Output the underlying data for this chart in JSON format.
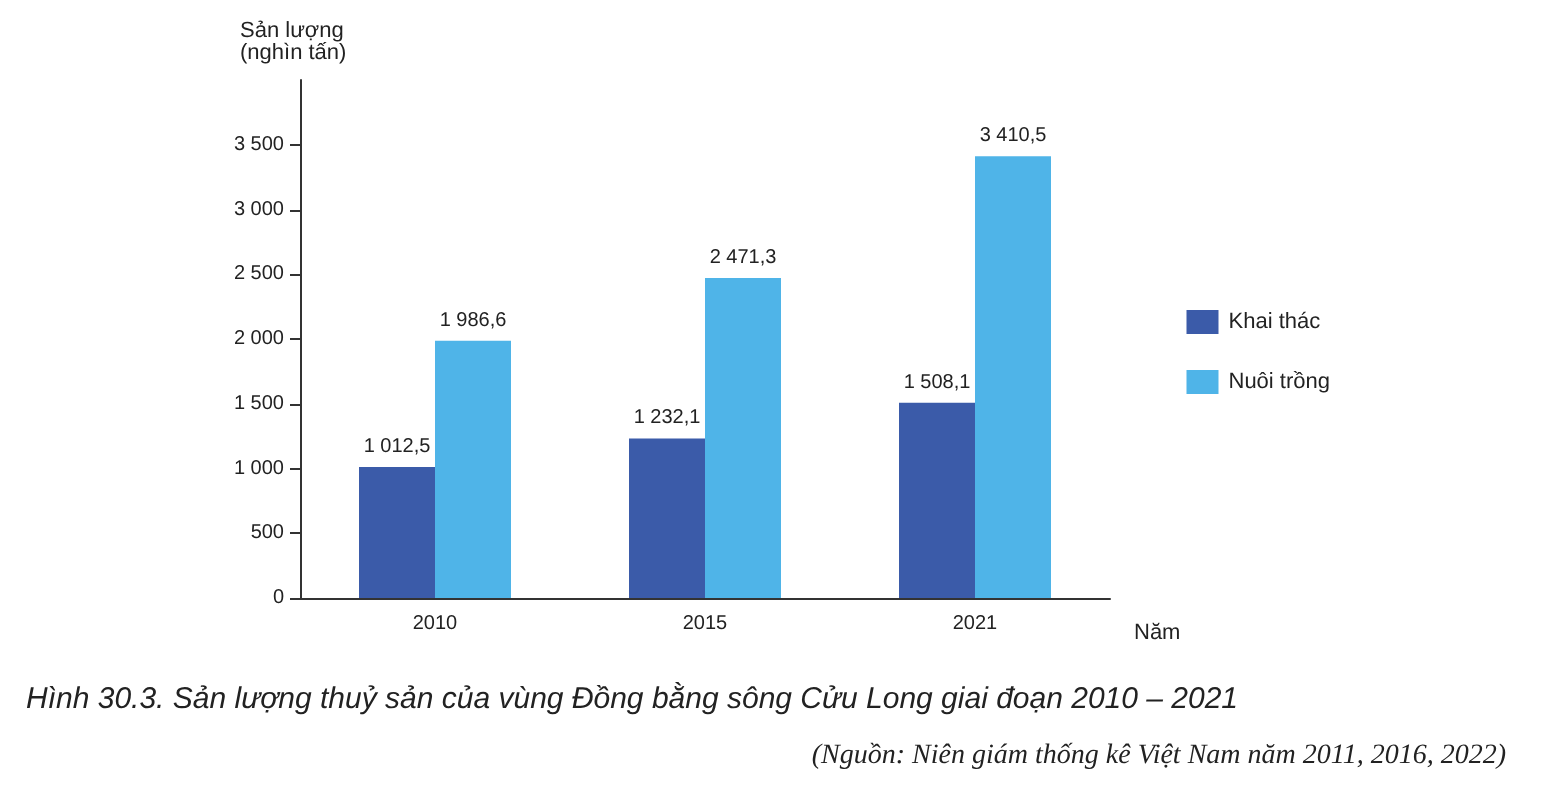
{
  "chart_data": {
    "type": "bar",
    "title": "Hình 30.3. Sản lượng thuỷ sản của vùng Đồng bằng sông Cửu Long giai đoạn 2010 – 2021",
    "annotations": [
      "(Nguồn: Niên giám thống kê Việt Nam năm 2011, 2016, 2022)"
    ],
    "xlabel": "Năm",
    "ylabel": "Sản lượng\n(nghìn tấn)",
    "categories": [
      "2010",
      "2015",
      "2021"
    ],
    "series": [
      {
        "name": "Khai thác",
        "color": "#3b5ba9",
        "values": [
          1012.5,
          1232.1,
          1508.1
        ],
        "value_labels": [
          "1 012,5",
          "1 232,1",
          "1 508,1"
        ]
      },
      {
        "name": "Nuôi trồng",
        "color": "#4fb4e8",
        "values": [
          1986.6,
          2471.3,
          3410.5
        ],
        "value_labels": [
          "1 986,6",
          "2 471,3",
          "3 410,5"
        ]
      }
    ],
    "ylim": [
      0,
      4000
    ],
    "yticks": [
      0,
      500,
      {
        "value": 1000,
        "label": "1 000"
      },
      {
        "value": 1500,
        "label": "1 500"
      },
      {
        "value": 2000,
        "label": "2 000"
      },
      {
        "value": 2500,
        "label": "2 500"
      },
      {
        "value": 3000,
        "label": "3 000"
      },
      {
        "value": 3500,
        "label": "3 500"
      }
    ],
    "grid": false,
    "legend": "right"
  }
}
